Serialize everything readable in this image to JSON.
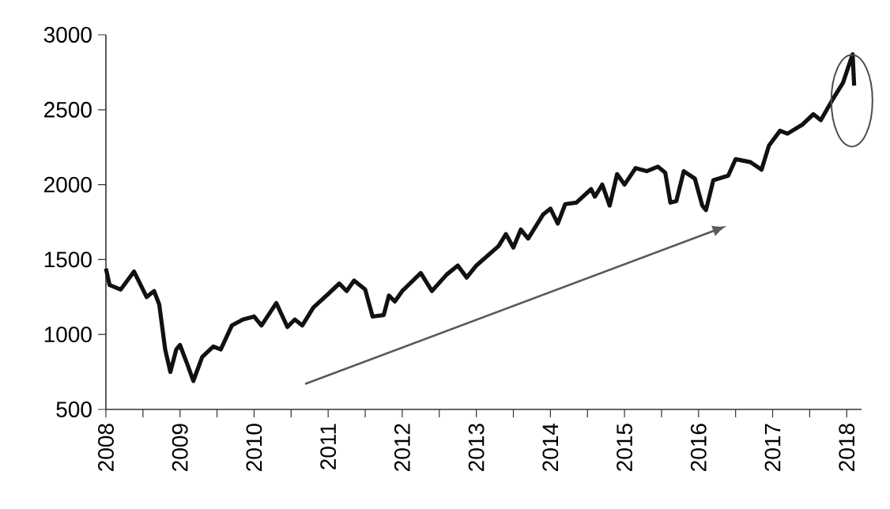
{
  "chart_data": {
    "type": "line",
    "x": [
      2008.0,
      2008.05,
      2008.2,
      2008.38,
      2008.55,
      2008.65,
      2008.72,
      2008.8,
      2008.87,
      2008.95,
      2009.0,
      2009.1,
      2009.18,
      2009.3,
      2009.45,
      2009.55,
      2009.7,
      2009.85,
      2010.0,
      2010.1,
      2010.3,
      2010.45,
      2010.55,
      2010.65,
      2010.8,
      2011.0,
      2011.15,
      2011.25,
      2011.35,
      2011.5,
      2011.6,
      2011.75,
      2011.82,
      2011.9,
      2012.0,
      2012.25,
      2012.4,
      2012.6,
      2012.75,
      2012.87,
      2013.0,
      2013.3,
      2013.4,
      2013.5,
      2013.6,
      2013.7,
      2013.9,
      2014.0,
      2014.1,
      2014.2,
      2014.35,
      2014.55,
      2014.6,
      2014.7,
      2014.8,
      2014.9,
      2015.0,
      2015.15,
      2015.3,
      2015.45,
      2015.55,
      2015.62,
      2015.7,
      2015.8,
      2015.95,
      2016.05,
      2016.1,
      2016.2,
      2016.4,
      2016.5,
      2016.7,
      2016.85,
      2016.95,
      2017.1,
      2017.2,
      2017.4,
      2017.55,
      2017.65,
      2017.8,
      2017.95,
      2018.08,
      2018.1
    ],
    "series": [
      {
        "color": "#111111",
        "values": [
          1440,
          1330,
          1300,
          1420,
          1250,
          1290,
          1200,
          900,
          750,
          900,
          930,
          800,
          690,
          850,
          920,
          900,
          1060,
          1100,
          1120,
          1060,
          1210,
          1050,
          1100,
          1060,
          1180,
          1270,
          1340,
          1290,
          1360,
          1300,
          1120,
          1130,
          1260,
          1220,
          1290,
          1410,
          1290,
          1400,
          1460,
          1380,
          1460,
          1590,
          1670,
          1580,
          1700,
          1640,
          1800,
          1840,
          1740,
          1870,
          1880,
          1970,
          1920,
          2000,
          1860,
          2070,
          2000,
          2110,
          2090,
          2120,
          2080,
          1880,
          1890,
          2090,
          2040,
          1860,
          1830,
          2030,
          2060,
          2170,
          2150,
          2100,
          2260,
          2360,
          2340,
          2400,
          2470,
          2430,
          2560,
          2680,
          2870,
          2660
        ]
      }
    ],
    "xlim": [
      2008,
      2018.2
    ],
    "ylim": [
      500,
      3000
    ],
    "xticks": [
      2008,
      2009,
      2010,
      2011,
      2012,
      2013,
      2014,
      2015,
      2016,
      2017,
      2018
    ],
    "yticks": [
      500,
      1000,
      1500,
      2000,
      2500,
      3000
    ],
    "grid": false,
    "marker": "none",
    "line_style": "solid"
  }
}
